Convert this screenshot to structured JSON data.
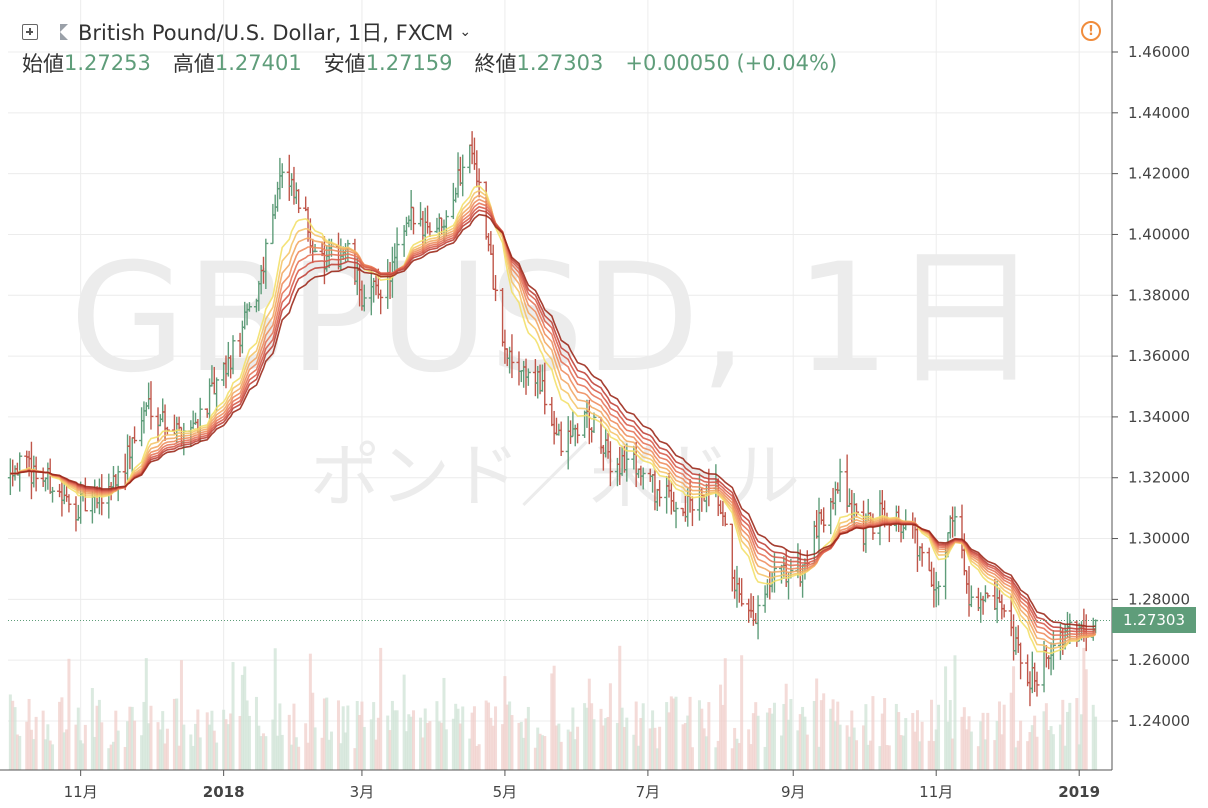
{
  "header": {
    "symbol_title": "British Pound/U.S. Dollar, 1日, FXCM",
    "open_label": "始値",
    "open_value": "1.27253",
    "high_label": "高値",
    "high_value": "1.27401",
    "low_label": "安値",
    "low_value": "1.27159",
    "close_label": "終値",
    "close_value": "1.27303",
    "change": "+0.00050 (+0.04%)"
  },
  "watermark": {
    "line1": "GBPUSD, 1日",
    "line2": "ポンド／米ドル"
  },
  "last_price_tag": "1.27303",
  "colors": {
    "up": "#5f9d7a",
    "down": "#c0564a",
    "ribbon_fast": "#f3e06a",
    "ribbon_slow": "#9c2a1c",
    "alert": "#f08c3c"
  },
  "chart_data": {
    "type": "ohlc",
    "timeframe": "daily",
    "y_axis": {
      "min": 1.225,
      "max": 1.47,
      "ticks": [
        "1.24000",
        "1.26000",
        "1.28000",
        "1.30000",
        "1.32000",
        "1.34000",
        "1.36000",
        "1.38000",
        "1.40000",
        "1.42000",
        "1.44000",
        "1.46000"
      ]
    },
    "x_axis": {
      "min": "2017-10-01",
      "max": "2019-01-15",
      "ticks": [
        {
          "label": "11月",
          "date": "2017-11-01"
        },
        {
          "label": "2018",
          "date": "2018-01-01"
        },
        {
          "label": "3月",
          "date": "2018-03-01"
        },
        {
          "label": "5月",
          "date": "2018-05-01"
        },
        {
          "label": "7月",
          "date": "2018-07-01"
        },
        {
          "label": "9月",
          "date": "2018-09-01"
        },
        {
          "label": "11月",
          "date": "2018-11-01"
        },
        {
          "label": "2019",
          "date": "2019-01-01"
        }
      ]
    },
    "price_path": [
      [
        "2017-10-02",
        1.325
      ],
      [
        "2017-10-12",
        1.322
      ],
      [
        "2017-10-20",
        1.318
      ],
      [
        "2017-10-27",
        1.31
      ],
      [
        "2017-11-08",
        1.312
      ],
      [
        "2017-11-20",
        1.325
      ],
      [
        "2017-11-30",
        1.345
      ],
      [
        "2017-12-12",
        1.335
      ],
      [
        "2017-12-20",
        1.338
      ],
      [
        "2018-01-02",
        1.355
      ],
      [
        "2018-01-15",
        1.38
      ],
      [
        "2018-01-25",
        1.42
      ],
      [
        "2018-02-02",
        1.41
      ],
      [
        "2018-02-12",
        1.39
      ],
      [
        "2018-02-22",
        1.395
      ],
      [
        "2018-03-02",
        1.378
      ],
      [
        "2018-03-12",
        1.385
      ],
      [
        "2018-03-22",
        1.405
      ],
      [
        "2018-04-03",
        1.403
      ],
      [
        "2018-04-11",
        1.418
      ],
      [
        "2018-04-17",
        1.431
      ],
      [
        "2018-04-23",
        1.4
      ],
      [
        "2018-05-01",
        1.36
      ],
      [
        "2018-05-15",
        1.352
      ],
      [
        "2018-05-25",
        1.33
      ],
      [
        "2018-06-05",
        1.34
      ],
      [
        "2018-06-15",
        1.325
      ],
      [
        "2018-06-25",
        1.325
      ],
      [
        "2018-07-05",
        1.315
      ],
      [
        "2018-07-17",
        1.31
      ],
      [
        "2018-07-30",
        1.315
      ],
      [
        "2018-08-10",
        1.275
      ],
      [
        "2018-08-15",
        1.272
      ],
      [
        "2018-08-24",
        1.287
      ],
      [
        "2018-09-05",
        1.29
      ],
      [
        "2018-09-20",
        1.32
      ],
      [
        "2018-10-01",
        1.302
      ],
      [
        "2018-10-10",
        1.31
      ],
      [
        "2018-10-22",
        1.302
      ],
      [
        "2018-11-01",
        1.28
      ],
      [
        "2018-11-08",
        1.31
      ],
      [
        "2018-11-15",
        1.282
      ],
      [
        "2018-11-28",
        1.276
      ],
      [
        "2018-12-11",
        1.252
      ],
      [
        "2018-12-20",
        1.265
      ],
      [
        "2019-01-01",
        1.27
      ],
      [
        "2019-01-08",
        1.273
      ]
    ],
    "indicator": "moving-average ribbon (8 lines)"
  }
}
